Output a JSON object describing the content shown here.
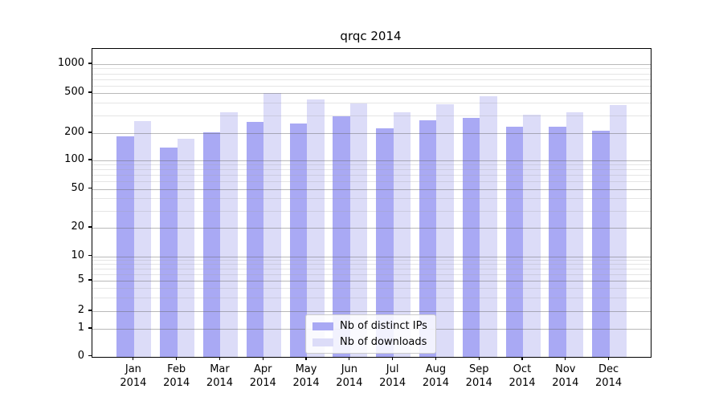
{
  "title": "qrqc 2014",
  "chart_data": {
    "type": "bar",
    "title": "qrqc 2014",
    "categories": [
      "Jan 2014",
      "Feb 2014",
      "Mar 2014",
      "Apr 2014",
      "May 2014",
      "Jun 2014",
      "Jul 2014",
      "Aug 2014",
      "Sep 2014",
      "Oct 2014",
      "Nov 2014",
      "Dec 2014"
    ],
    "series": [
      {
        "name": "Nb of distinct IPs",
        "color": "#a9a9f4",
        "values": [
          185,
          140,
          205,
          260,
          250,
          295,
          225,
          270,
          285,
          230,
          230,
          210
        ]
      },
      {
        "name": "Nb of downloads",
        "color": "#dcdcf8",
        "values": [
          265,
          175,
          320,
          500,
          430,
          395,
          325,
          390,
          465,
          305,
          325,
          380
        ]
      }
    ],
    "xlabel": "",
    "ylabel": "",
    "yscale": "symlog",
    "ylim": [
      0,
      1400
    ],
    "y_ticks": [
      0,
      1,
      2,
      5,
      10,
      20,
      50,
      100,
      200,
      500,
      1000
    ],
    "y_minor_ticks": [
      3,
      4,
      6,
      7,
      8,
      9,
      30,
      40,
      60,
      70,
      80,
      90,
      300,
      400,
      600,
      700,
      800,
      900
    ],
    "grid": "horizontal major and minor, drawn over bars",
    "legend_position": "lower center"
  },
  "x_axis": {
    "months": [
      "Jan",
      "Feb",
      "Mar",
      "Apr",
      "May",
      "Jun",
      "Jul",
      "Aug",
      "Sep",
      "Oct",
      "Nov",
      "Dec"
    ],
    "year": "2014"
  },
  "y_axis": {
    "tick_labels": [
      "0",
      "1",
      "2",
      "5",
      "10",
      "20",
      "50",
      "100",
      "200",
      "500",
      "1000"
    ]
  },
  "legend": {
    "items": [
      {
        "label": "Nb of distinct IPs",
        "color": "#a9a9f4"
      },
      {
        "label": "Nb of downloads",
        "color": "#dcdcf8"
      }
    ]
  }
}
